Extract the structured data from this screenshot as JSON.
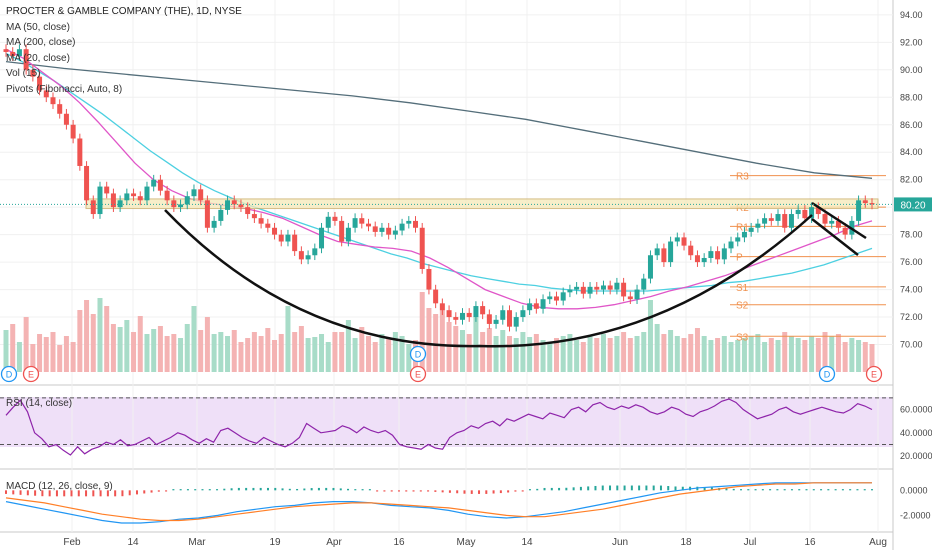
{
  "header": {
    "symbol_line": "PROCTER & GAMBLE COMPANY (THE), 1D, NYSE",
    "indicators": [
      "MA (50, close)",
      "MA (200, close)",
      "MA (20, close)",
      "Vol (15)",
      "Pivots (Fibonacci, Auto, 8)"
    ]
  },
  "chart_data": [
    {
      "type": "candlestick",
      "title": "PROCTER & GAMBLE COMPANY (THE), 1D, NYSE",
      "price_axis_ticks": [
        "94.00",
        "92.00",
        "90.00",
        "88.00",
        "86.00",
        "84.00",
        "82.00",
        "80.00",
        "78.00",
        "76.00",
        "74.00",
        "72.00",
        "70.00"
      ],
      "ylim": [
        68.0,
        94.5
      ],
      "x_ticks": [
        "Feb",
        "14",
        "Mar",
        "19",
        "Apr",
        "16",
        "May",
        "14",
        "Jun",
        "18",
        "Jul",
        "16",
        "Aug"
      ],
      "last_price_label": "80.20",
      "closes": [
        91.3,
        91.0,
        91.5,
        90.0,
        89.5,
        88.5,
        88.0,
        87.5,
        86.8,
        86.0,
        85.0,
        83.0,
        80.5,
        79.5,
        81.5,
        81.0,
        80.0,
        80.5,
        81.0,
        80.8,
        80.5,
        81.5,
        82.0,
        81.2,
        80.5,
        80.0,
        80.2,
        80.8,
        81.3,
        80.5,
        78.5,
        79.0,
        79.8,
        80.5,
        80.2,
        80.0,
        79.5,
        79.2,
        78.8,
        78.5,
        78.0,
        77.5,
        78.0,
        76.8,
        76.2,
        76.5,
        77.0,
        78.5,
        79.3,
        79.0,
        77.5,
        78.5,
        79.2,
        78.8,
        78.6,
        78.2,
        78.5,
        78.0,
        78.3,
        78.8,
        79.0,
        78.5,
        75.5,
        74.0,
        73.0,
        72.5,
        72.0,
        71.8,
        72.3,
        72.0,
        72.8,
        72.2,
        71.5,
        71.8,
        72.5,
        71.3,
        72.0,
        72.5,
        73.0,
        72.6,
        73.3,
        73.5,
        73.2,
        73.8,
        74.0,
        74.2,
        73.7,
        74.2,
        74.0,
        74.3,
        74.0,
        74.5,
        73.5,
        73.3,
        74.0,
        74.8,
        76.5,
        77.0,
        76.0,
        77.5,
        77.8,
        77.2,
        76.5,
        76.0,
        76.3,
        76.8,
        76.2,
        77.0,
        77.5,
        77.8,
        78.2,
        78.5,
        78.8,
        79.2,
        79.0,
        79.5,
        78.5,
        79.5,
        79.8,
        79.2,
        80.0,
        79.5,
        78.8,
        79.0,
        78.5,
        78.0,
        79.0,
        80.5,
        80.3,
        80.2
      ],
      "ma50": [
        91.2,
        90.6,
        89.9,
        89.2,
        88.4,
        87.6,
        86.8,
        85.9,
        85.0,
        84.1,
        83.3,
        82.5,
        81.8,
        81.2,
        80.7,
        80.2,
        79.8,
        79.4,
        79.0,
        78.6,
        78.2,
        77.8,
        77.4,
        77.0,
        76.6,
        76.3,
        75.9,
        75.6,
        75.3,
        75.0,
        74.8,
        74.6,
        74.4,
        74.3,
        74.1,
        74.0,
        73.9,
        73.9,
        73.9,
        73.9,
        73.9,
        74.0,
        74.1,
        74.2,
        74.3,
        74.5,
        74.6,
        74.8,
        75.0,
        75.2,
        75.5,
        75.8,
        76.2,
        76.6,
        77.0
      ],
      "ma200": [
        90.6,
        90.1,
        89.7,
        89.3,
        88.9,
        88.5,
        88.1,
        87.6,
        87.0,
        86.4,
        85.6,
        84.8,
        84.0,
        83.2,
        82.5,
        82.1
      ],
      "ma20": [
        91.5,
        90.8,
        89.8,
        88.8,
        87.6,
        86.2,
        84.7,
        83.2,
        82.0,
        81.2,
        80.6,
        80.3,
        80.1,
        79.9,
        79.6,
        79.2,
        78.6,
        78.0,
        77.5,
        77.3,
        77.1,
        77.0,
        76.8,
        76.3,
        75.6,
        74.8,
        74.0,
        73.5,
        73.0,
        72.7,
        72.6,
        72.6,
        72.7,
        72.9,
        73.2,
        73.5,
        73.9,
        74.2,
        74.6,
        75.0,
        75.5,
        76.0,
        76.5,
        77.0,
        77.5,
        78.0,
        78.6,
        79.0
      ],
      "volume": [
        42,
        48,
        30,
        55,
        28,
        38,
        35,
        40,
        27,
        36,
        30,
        62,
        72,
        58,
        74,
        66,
        48,
        45,
        52,
        40,
        56,
        38,
        43,
        46,
        36,
        38,
        34,
        48,
        66,
        42,
        55,
        38,
        40,
        36,
        42,
        30,
        34,
        40,
        36,
        44,
        32,
        38,
        66,
        40,
        46,
        34,
        35,
        38,
        30,
        40,
        40,
        52,
        34,
        45,
        36,
        30,
        38,
        34,
        40,
        36,
        28,
        32,
        80,
        64,
        58,
        62,
        50,
        46,
        42,
        38,
        55,
        40,
        44,
        36,
        42,
        36,
        34,
        40,
        35,
        38,
        32,
        30,
        34,
        36,
        38,
        32,
        30,
        36,
        34,
        38,
        34,
        36,
        40,
        34,
        36,
        40,
        72,
        48,
        38,
        42,
        36,
        34,
        38,
        44,
        36,
        32,
        34,
        36,
        30,
        32,
        34,
        36,
        38,
        30,
        34,
        32,
        40,
        36,
        34,
        32,
        36,
        34,
        40,
        36,
        38,
        30,
        34,
        32,
        30,
        28
      ],
      "pivots": [
        {
          "label": "R3",
          "value": 82.3
        },
        {
          "label": "R2",
          "value": 80.0
        },
        {
          "label": "R1",
          "value": 78.6
        },
        {
          "label": "P",
          "value": 76.4
        },
        {
          "label": "S1",
          "value": 74.2
        },
        {
          "label": "S2",
          "value": 72.9
        },
        {
          "label": "S3",
          "value": 70.6
        }
      ],
      "events": [
        "D",
        "E",
        "D",
        "E",
        "D",
        "E"
      ]
    },
    {
      "type": "line",
      "title": "RSI (14, close)",
      "ticks": [
        "60.0000",
        "40.0000",
        "20.0000"
      ],
      "ylim": [
        15,
        75
      ],
      "bands": [
        70,
        30
      ],
      "values": [
        55,
        62,
        68,
        58,
        40,
        35,
        28,
        30,
        25,
        21,
        28,
        22,
        26,
        28,
        32,
        30,
        34,
        29,
        30,
        33,
        36,
        30,
        33,
        36,
        40,
        38,
        34,
        31,
        35,
        32,
        42,
        44,
        40,
        36,
        33,
        31,
        36,
        33,
        30,
        28,
        31,
        36,
        48,
        44,
        40,
        41,
        42,
        46,
        44,
        40,
        45,
        42,
        40,
        42,
        38,
        30,
        28,
        27,
        26,
        30,
        27,
        26,
        36,
        40,
        42,
        46,
        44,
        48,
        50,
        46,
        52,
        50,
        53,
        56,
        54,
        52,
        57,
        55,
        53,
        60,
        62,
        58,
        64,
        66,
        62,
        60,
        63,
        61,
        64,
        62,
        58,
        56,
        58,
        62,
        60,
        56,
        54,
        58,
        60,
        63,
        67,
        69,
        66,
        60,
        56,
        52,
        54,
        56,
        60,
        62,
        58,
        56,
        58,
        60,
        62,
        60,
        58,
        57,
        60,
        65,
        63,
        60
      ]
    },
    {
      "type": "line",
      "title": "MACD (12, 26, close, 9)",
      "ticks": [
        "0.0000",
        "-2.0000"
      ],
      "ylim": [
        -3.0,
        1.3
      ],
      "macd": [
        -0.9,
        -1.2,
        -1.5,
        -1.8,
        -2.1,
        -2.4,
        -2.6,
        -2.6,
        -2.5,
        -2.3,
        -2.2,
        -2.0,
        -1.7,
        -1.5,
        -1.3,
        -1.2,
        -1.0,
        -0.9,
        -0.9,
        -1.0,
        -1.2,
        -1.3,
        -1.4,
        -1.6,
        -1.9,
        -2.1,
        -2.2,
        -2.1,
        -1.9,
        -1.7,
        -1.4,
        -1.1,
        -0.8,
        -0.5,
        -0.2,
        0.0,
        0.2,
        0.3,
        0.4,
        0.5,
        0.6,
        0.6,
        0.6,
        0.6,
        0.6,
        0.6
      ],
      "signal": [
        -0.6,
        -0.8,
        -1.0,
        -1.3,
        -1.6,
        -1.9,
        -2.1,
        -2.3,
        -2.4,
        -2.4,
        -2.3,
        -2.1,
        -1.9,
        -1.7,
        -1.5,
        -1.3,
        -1.2,
        -1.1,
        -1.0,
        -1.0,
        -1.1,
        -1.2,
        -1.3,
        -1.4,
        -1.6,
        -1.8,
        -2.0,
        -2.1,
        -2.1,
        -1.9,
        -1.7,
        -1.5,
        -1.2,
        -0.9,
        -0.6,
        -0.3,
        -0.1,
        0.1,
        0.3,
        0.4,
        0.5,
        0.5,
        0.6,
        0.6,
        0.6,
        0.6
      ]
    }
  ]
}
